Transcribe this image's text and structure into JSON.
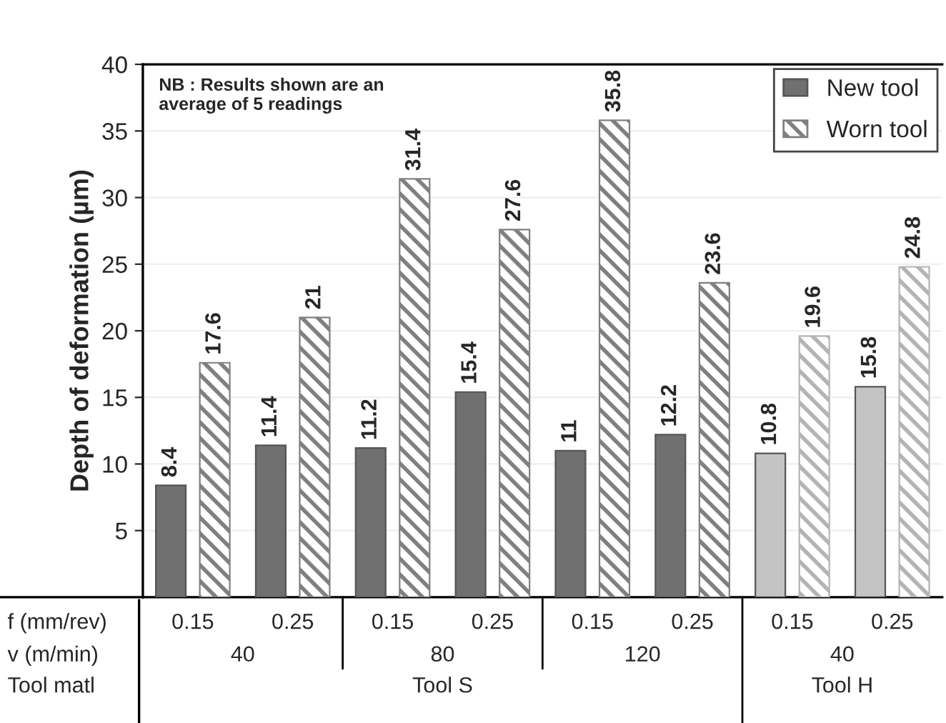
{
  "chart_data": {
    "type": "bar",
    "ylabel": "Depth of deformation (µm)",
    "categories": [
      "0.15",
      "0.25",
      "0.15",
      "0.25",
      "0.15",
      "0.25",
      "0.15",
      "0.25"
    ],
    "series": [
      {
        "name": "New tool",
        "color": "#707070",
        "colors": [
          "#707070",
          "#707070",
          "#707070",
          "#707070",
          "#707070",
          "#707070",
          "#c4c4c4",
          "#c4c4c4"
        ],
        "values": [
          8.4,
          11.4,
          11.2,
          15.4,
          11,
          12.2,
          10.8,
          15.8
        ]
      },
      {
        "name": "Worn tool",
        "color": "#808080",
        "colors": [
          "#808080",
          "#808080",
          "#808080",
          "#808080",
          "#808080",
          "#808080",
          "#b4b4b4",
          "#b4b4b4"
        ],
        "values": [
          17.6,
          21,
          31.4,
          27.6,
          35.8,
          23.6,
          19.6,
          24.8
        ]
      }
    ],
    "ylim": [
      0,
      40
    ],
    "yticks": [
      5,
      10,
      15,
      20,
      25,
      30,
      35,
      40
    ],
    "grid": "y",
    "legend": "top right",
    "data_labels": true,
    "annotations": [
      "f (mm/rev)",
      "v (m/min)",
      "Tool matl",
      "40",
      "80",
      "120",
      "40",
      "Tool S",
      "Tool H",
      "NB : Results shown are an\naverage of 5 readings"
    ]
  }
}
